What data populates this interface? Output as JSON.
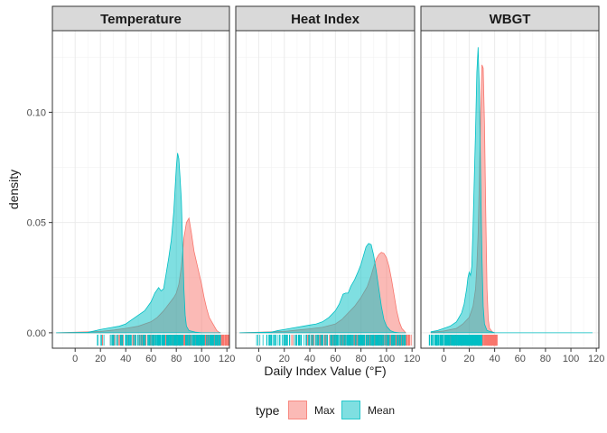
{
  "chart_data": {
    "type": "area",
    "subtype": "density",
    "facets": [
      "Temperature",
      "Heat Index",
      "WBGT"
    ],
    "xlabel": "Daily Index Value (°F)",
    "ylabel": "density",
    "xlim": [
      -18,
      122
    ],
    "ylim": [
      -0.007,
      0.137
    ],
    "x_ticks": [
      0,
      20,
      40,
      60,
      80,
      100,
      120
    ],
    "y_ticks": [
      0.0,
      0.05,
      0.1
    ],
    "y_tick_labels": [
      "0.00",
      "0.05",
      "0.10"
    ],
    "legend": {
      "title": "type",
      "position": "bottom",
      "items": [
        {
          "label": "Max",
          "color": "#F8766D"
        },
        {
          "label": "Mean",
          "color": "#00BFC4"
        }
      ]
    },
    "panels": [
      {
        "facet": "Temperature",
        "series": [
          {
            "name": "Mean",
            "color": "#00BFC4",
            "x": [
              -15,
              10,
              15,
              20,
              25,
              30,
              35,
              40,
              45,
              50,
              55,
              60,
              63,
              66,
              68,
              70,
              72,
              74,
              76,
              78,
              79,
              80,
              81,
              82,
              83,
              84,
              85,
              86,
              87,
              88,
              90,
              95,
              100,
              105,
              110,
              115
            ],
            "y": [
              0,
              0.0002,
              0.0008,
              0.0015,
              0.002,
              0.0025,
              0.003,
              0.004,
              0.006,
              0.008,
              0.01,
              0.014,
              0.018,
              0.0205,
              0.019,
              0.02,
              0.027,
              0.034,
              0.042,
              0.055,
              0.065,
              0.075,
              0.0815,
              0.079,
              0.07,
              0.06,
              0.04,
              0.02,
              0.008,
              0.003,
              0.001,
              0.0003,
              0,
              0,
              0,
              0
            ],
            "rug": [
              15,
              115
            ]
          },
          {
            "name": "Max",
            "color": "#F8766D",
            "x": [
              -15,
              20,
              30,
              40,
              50,
              60,
              65,
              70,
              74,
              78,
              80,
              82,
              84,
              86,
              88,
              90,
              92,
              94,
              96,
              98,
              100,
              102,
              104,
              106,
              108,
              110,
              112,
              114,
              115
            ],
            "y": [
              0,
              0.0006,
              0.0012,
              0.002,
              0.003,
              0.005,
              0.007,
              0.01,
              0.013,
              0.016,
              0.018,
              0.022,
              0.03,
              0.043,
              0.05,
              0.052,
              0.045,
              0.037,
              0.032,
              0.027,
              0.022,
              0.016,
              0.011,
              0.007,
              0.005,
              0.003,
              0.001,
              0.0002,
              0
            ],
            "rug": [
              17,
              122
            ]
          }
        ]
      },
      {
        "facet": "Heat Index",
        "series": [
          {
            "name": "Mean",
            "color": "#00BFC4",
            "x": [
              -15,
              10,
              15,
              20,
              25,
              30,
              35,
              40,
              45,
              50,
              55,
              60,
              63,
              66,
              68,
              70,
              72,
              75,
              78,
              80,
              82,
              84,
              86,
              88,
              90,
              92,
              94,
              96,
              98,
              100,
              103,
              106,
              110,
              115
            ],
            "y": [
              0,
              0.0003,
              0.001,
              0.0015,
              0.002,
              0.0025,
              0.003,
              0.0035,
              0.004,
              0.005,
              0.007,
              0.01,
              0.013,
              0.0175,
              0.018,
              0.018,
              0.021,
              0.024,
              0.028,
              0.031,
              0.035,
              0.039,
              0.0405,
              0.04,
              0.035,
              0.028,
              0.02,
              0.012,
              0.006,
              0.003,
              0.001,
              0.0003,
              0,
              0
            ],
            "rug": [
              -4,
              115
            ]
          },
          {
            "name": "Max",
            "color": "#F8766D",
            "x": [
              -15,
              20,
              30,
              40,
              50,
              60,
              65,
              70,
              75,
              80,
              85,
              88,
              90,
              92,
              94,
              96,
              98,
              100,
              102,
              104,
              106,
              108,
              110,
              112,
              115
            ],
            "y": [
              0,
              0.0006,
              0.0012,
              0.0018,
              0.0025,
              0.004,
              0.006,
              0.009,
              0.012,
              0.016,
              0.021,
              0.026,
              0.03,
              0.0335,
              0.0355,
              0.0365,
              0.036,
              0.034,
              0.03,
              0.024,
              0.017,
              0.01,
              0.005,
              0.002,
              0
            ],
            "rug": [
              16,
              120
            ]
          }
        ]
      },
      {
        "facet": "WBGT",
        "series": [
          {
            "name": "Mean",
            "color": "#00BFC4",
            "x": [
              -10,
              -5,
              0,
              5,
              10,
              14,
              16,
              18,
              19,
              20,
              21,
              22,
              23,
              24,
              25,
              26,
              27,
              28,
              29,
              30,
              31,
              32,
              34,
              40,
              60,
              80,
              100,
              117
            ],
            "y": [
              0.0005,
              0.001,
              0.002,
              0.003,
              0.005,
              0.009,
              0.013,
              0.02,
              0.025,
              0.0275,
              0.026,
              0.03,
              0.048,
              0.07,
              0.092,
              0.118,
              0.1295,
              0.11,
              0.07,
              0.035,
              0.012,
              0.004,
              0.001,
              0,
              0,
              0,
              0,
              0
            ],
            "rug": [
              -12,
              30
            ]
          },
          {
            "name": "Max",
            "color": "#F8766D",
            "x": [
              -10,
              0,
              10,
              15,
              20,
              23,
              25,
              26,
              27,
              28,
              29,
              30,
              31,
              32,
              33,
              34,
              35,
              36,
              38,
              40
            ],
            "y": [
              0.0002,
              0.0008,
              0.002,
              0.004,
              0.007,
              0.012,
              0.02,
              0.03,
              0.045,
              0.07,
              0.1,
              0.1215,
              0.12,
              0.095,
              0.055,
              0.02,
              0.006,
              0.002,
              0.0005,
              0
            ],
            "rug": [
              -5,
              42
            ]
          }
        ]
      }
    ]
  }
}
